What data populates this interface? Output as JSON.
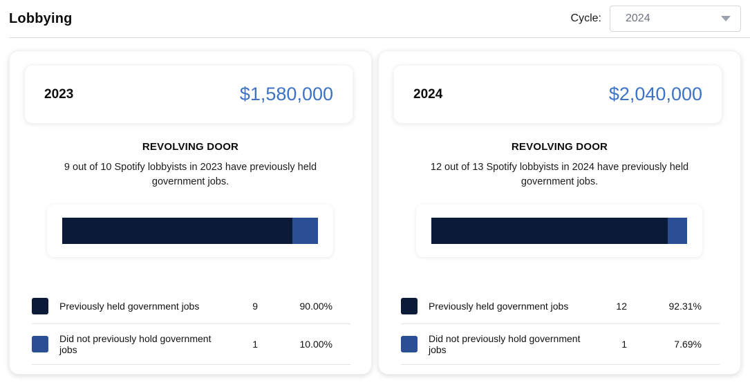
{
  "page": {
    "title": "Lobbying",
    "cycle_label": "Cycle:",
    "cycle_value": "2024"
  },
  "colors": {
    "held": "#0a1a38",
    "not_held": "#2a4f94",
    "amount_blue": "#3d72c4"
  },
  "cards": [
    {
      "year": "2023",
      "amount": "$1,580,000",
      "section_title": "REVOLVING DOOR",
      "description": "9 out of 10 Spotify lobbyists in 2023 have previously held government jobs.",
      "bar_percents": [
        90,
        10
      ],
      "legend": [
        {
          "label": "Previously held government jobs",
          "count": "9",
          "percent": "90.00%"
        },
        {
          "label": "Did not previously hold government jobs",
          "count": "1",
          "percent": "10.00%"
        }
      ]
    },
    {
      "year": "2024",
      "amount": "$2,040,000",
      "section_title": "REVOLVING DOOR",
      "description": "12 out of 13 Spotify lobbyists in 2024 have previously held government jobs.",
      "bar_percents": [
        92.31,
        7.69
      ],
      "legend": [
        {
          "label": "Previously held government jobs",
          "count": "12",
          "percent": "92.31%"
        },
        {
          "label": "Did not previously hold government jobs",
          "count": "1",
          "percent": "7.69%"
        }
      ]
    }
  ],
  "chart_data": [
    {
      "type": "bar",
      "variant": "horizontal-stacked",
      "title": "REVOLVING DOOR 2023",
      "categories": [
        "Previously held government jobs",
        "Did not previously hold government jobs"
      ],
      "values": [
        9,
        1
      ],
      "percents": [
        90.0,
        10.0
      ],
      "total": 10,
      "colors": [
        "#0a1a38",
        "#2a4f94"
      ],
      "legend_position": "below",
      "axes": "none"
    },
    {
      "type": "bar",
      "variant": "horizontal-stacked",
      "title": "REVOLVING DOOR 2024",
      "categories": [
        "Previously held government jobs",
        "Did not previously hold government jobs"
      ],
      "values": [
        12,
        1
      ],
      "percents": [
        92.31,
        7.69
      ],
      "total": 13,
      "colors": [
        "#0a1a38",
        "#2a4f94"
      ],
      "legend_position": "below",
      "axes": "none"
    }
  ]
}
